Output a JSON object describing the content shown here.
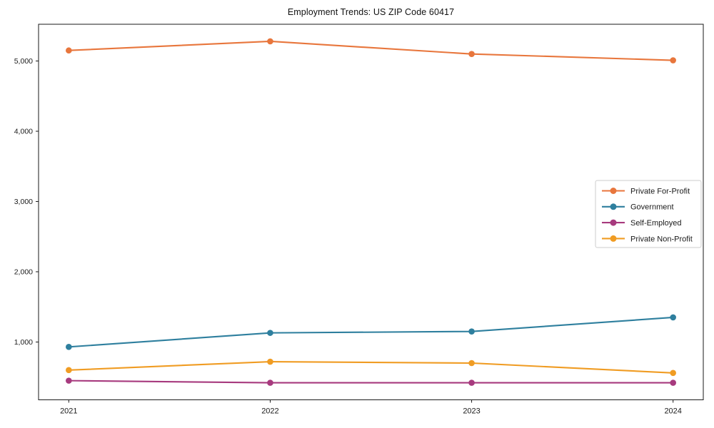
{
  "figure": {
    "title": "Employment Trends: US ZIP Code 60417"
  },
  "chart_data": {
    "type": "line",
    "title": "Employment Trends: US ZIP Code 60417",
    "xlabel": "",
    "ylabel": "",
    "x": [
      "2021",
      "2022",
      "2023",
      "2024"
    ],
    "series": [
      {
        "name": "Private For-Profit",
        "color": "#e8763c",
        "values": [
          5150,
          5280,
          5100,
          5010
        ]
      },
      {
        "name": "Government",
        "color": "#2e7f9e",
        "values": [
          930,
          1130,
          1150,
          1350
        ]
      },
      {
        "name": "Self-Employed",
        "color": "#a73a7e",
        "values": [
          450,
          420,
          420,
          420
        ]
      },
      {
        "name": "Private Non-Profit",
        "color": "#f09c23",
        "values": [
          600,
          720,
          700,
          560
        ]
      }
    ],
    "ylim": [
      177,
      5523
    ],
    "yticks": [
      1000,
      2000,
      3000,
      4000,
      5000
    ],
    "ytick_format": "comma",
    "grid": false,
    "frame": true,
    "marker": "circle",
    "legend": {
      "position": "center-right",
      "entries": [
        "Private For-Profit",
        "Government",
        "Self-Employed",
        "Private Non-Profit"
      ]
    }
  }
}
